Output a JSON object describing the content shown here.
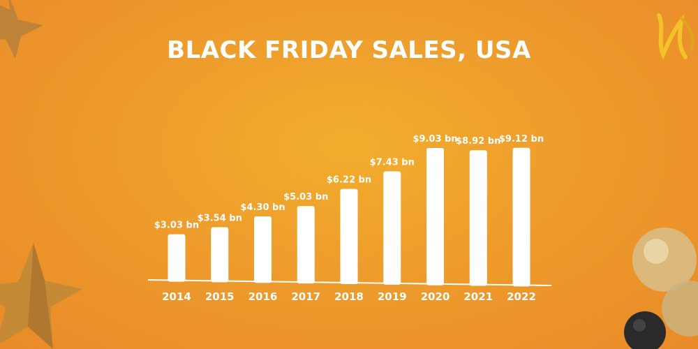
{
  "page": {
    "title": "BLACK FRIDAY SALES, USA"
  },
  "colors": {
    "background": "#ee9c2c",
    "bar": "#ffffff",
    "text": "#ffffff",
    "star": "#c98a35",
    "ribbon": "#f3c22b",
    "balloon_gold": "#d7c08a",
    "balloon_black": "#2a2a2a"
  },
  "chart_data": {
    "type": "bar",
    "title": "BLACK FRIDAY SALES, USA",
    "categories": [
      "2014",
      "2015",
      "2016",
      "2017",
      "2018",
      "2019",
      "2020",
      "2021",
      "2022"
    ],
    "values": [
      3.03,
      3.54,
      4.3,
      5.03,
      6.22,
      7.43,
      9.03,
      8.92,
      9.12
    ],
    "data_labels": [
      "$3.03 bn",
      "$3.54 bn",
      "$4.30 bn",
      "$5.03 bn",
      "$6.22 bn",
      "$7.43 bn",
      "$9.03 bn",
      "$8.92 bn",
      "$9.12 bn"
    ],
    "unit": "bn",
    "xlabel": "",
    "ylabel": "",
    "ylim": [
      0,
      10
    ],
    "grid": false,
    "legend": "none"
  },
  "decorations": {
    "icons": [
      "star-icon",
      "ribbon-icon",
      "balloon-icon"
    ]
  }
}
